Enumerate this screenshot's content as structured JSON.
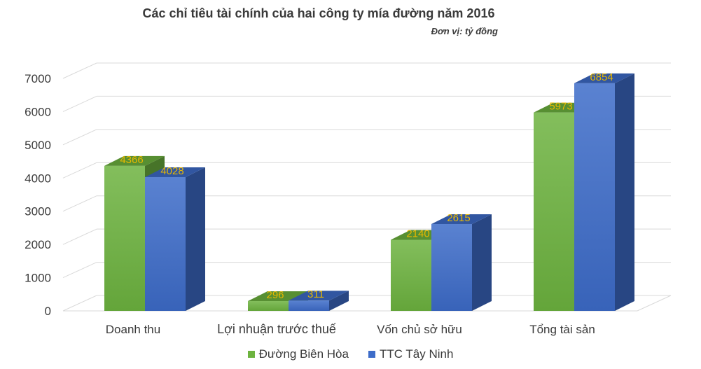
{
  "chart_data": {
    "type": "bar",
    "title": "Các chỉ tiêu tài chính của hai công ty mía đường năm 2016",
    "subtitle": "Đơn vị: tỷ đồng",
    "categories": [
      "Doanh thu",
      "Lợi nhuận trước thuế",
      "Vốn chủ sở hữu",
      "Tổng tài sản"
    ],
    "series": [
      {
        "name": "Đường Biên Hòa",
        "values": [
          4366,
          296,
          2140,
          5973
        ],
        "color": "#6db33f"
      },
      {
        "name": "TTC Tây Ninh",
        "values": [
          4028,
          311,
          2615,
          6854
        ],
        "color": "#3d6cc9"
      }
    ],
    "yticks": [
      0,
      1000,
      2000,
      3000,
      4000,
      5000,
      6000,
      7000
    ],
    "ylim": [
      0,
      7000
    ],
    "grid": true,
    "three_d": true,
    "legend_position": "bottom",
    "data_label_color": "#e8b800"
  }
}
